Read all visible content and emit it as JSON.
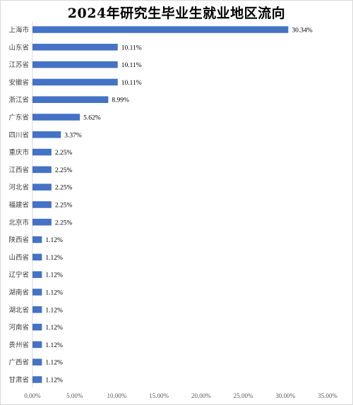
{
  "chart_data": {
    "type": "bar",
    "orientation": "horizontal",
    "title": "2024年研究生毕业生就业地区流向",
    "categories": [
      "上海市",
      "山东省",
      "江苏省",
      "安徽省",
      "浙江省",
      "广东省",
      "四川省",
      "重庆市",
      "江西省",
      "河北省",
      "福建省",
      "北京市",
      "陕西省",
      "山西省",
      "辽宁省",
      "湖南省",
      "湖北省",
      "河南省",
      "贵州省",
      "广西省",
      "甘肃省"
    ],
    "values": [
      30.34,
      10.11,
      10.11,
      10.11,
      8.99,
      5.62,
      3.37,
      2.25,
      2.25,
      2.25,
      2.25,
      2.25,
      1.12,
      1.12,
      1.12,
      1.12,
      1.12,
      1.12,
      1.12,
      1.12,
      1.12
    ],
    "value_labels": [
      "30.34%",
      "10.11%",
      "10.11%",
      "10.11%",
      "8.99%",
      "5.62%",
      "3.37%",
      "2.25%",
      "2.25%",
      "2.25%",
      "2.25%",
      "2.25%",
      "1.12%",
      "1.12%",
      "1.12%",
      "1.12%",
      "1.12%",
      "1.12%",
      "1.12%",
      "1.12%",
      "1.12%"
    ],
    "xlim": [
      0,
      35
    ],
    "xticks": [
      0,
      5,
      10,
      15,
      20,
      25,
      30,
      35
    ],
    "xtick_labels": [
      "0.00%",
      "5.00%",
      "10.00%",
      "15.00%",
      "20.00%",
      "25.00%",
      "30.00%",
      "35.00%"
    ],
    "grid": false,
    "bar_color": "#4472c4"
  }
}
